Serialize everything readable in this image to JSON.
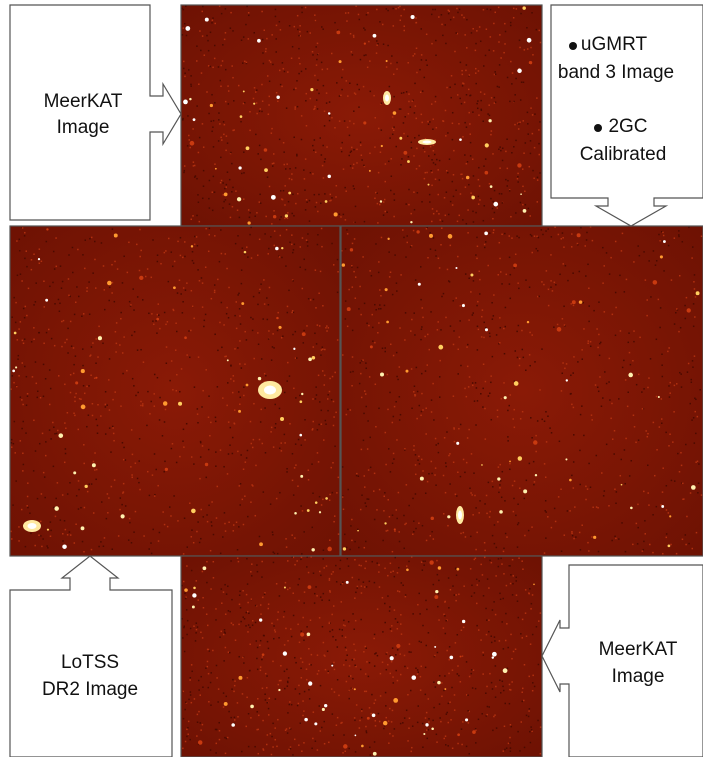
{
  "callouts": [
    {
      "lines": [
        "MeerKAT",
        "Image"
      ]
    },
    {
      "bullets": [
        [
          "uGMRT",
          "band 3 Image"
        ],
        [
          "2GC",
          "Calibrated"
        ]
      ]
    },
    {
      "lines": [
        "LoTSS",
        "DR2 Image"
      ]
    },
    {
      "lines": [
        "MeerKAT",
        "Image"
      ]
    }
  ]
}
